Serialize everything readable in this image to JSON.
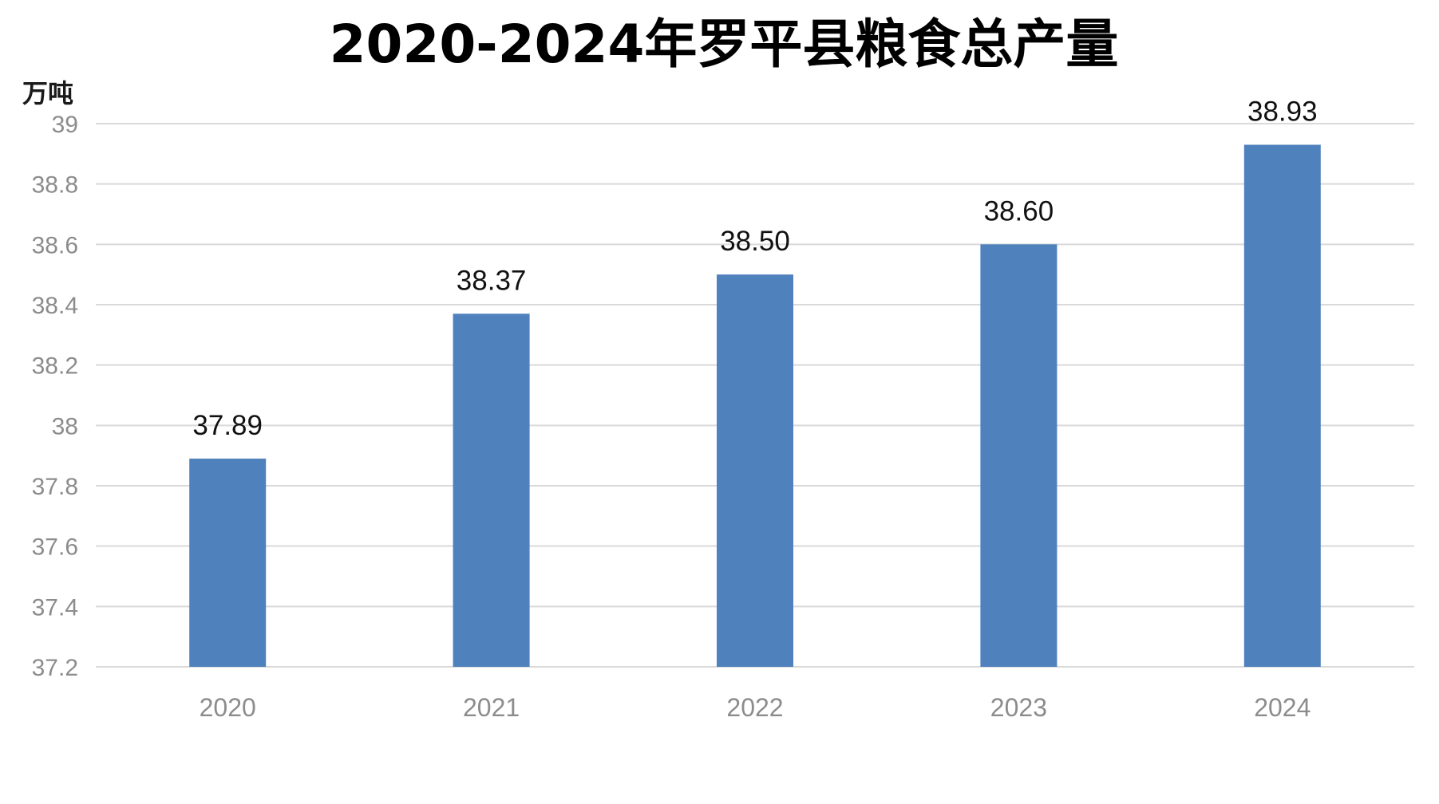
{
  "chart_data": {
    "type": "bar",
    "title": "2020-2024年罗平县粮食总产量",
    "xlabel": "",
    "ylabel": "万吨",
    "categories": [
      "2020",
      "2021",
      "2022",
      "2023",
      "2024"
    ],
    "values": [
      37.89,
      38.37,
      38.5,
      38.6,
      38.93
    ],
    "value_labels": [
      "37.89",
      "38.37",
      "38.50",
      "38.60",
      "38.93"
    ],
    "ylim": [
      37.2,
      39
    ],
    "y_ticks": [
      37.2,
      37.4,
      37.6,
      37.8,
      38,
      38.2,
      38.4,
      38.6,
      38.8,
      39
    ],
    "y_tick_labels": [
      "37.2",
      "37.4",
      "37.6",
      "37.8",
      "38",
      "38.2",
      "38.4",
      "38.6",
      "38.8",
      "39"
    ],
    "grid": true,
    "bar_color": "#4f81bd"
  }
}
